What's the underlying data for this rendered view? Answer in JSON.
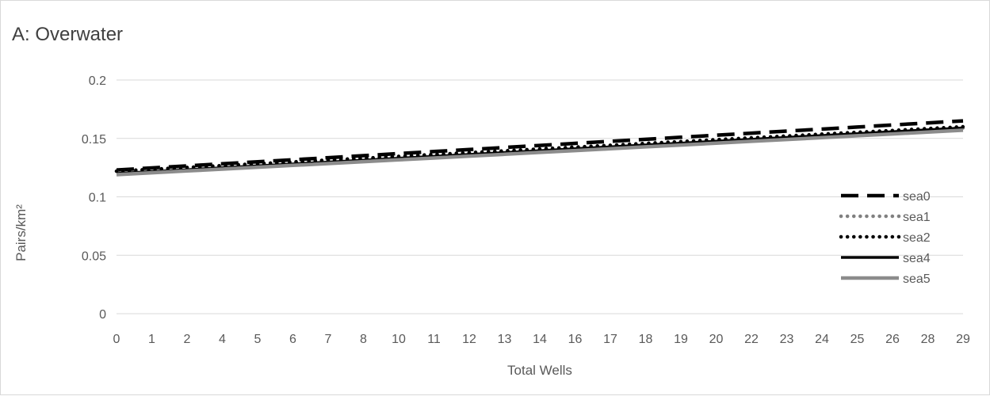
{
  "chart_data": {
    "type": "line",
    "title": "A: Overwater",
    "xlabel": "Total Wells",
    "ylabel": "Pairs/km²",
    "categories": [
      "0",
      "1",
      "2",
      "4",
      "5",
      "6",
      "7",
      "8",
      "10",
      "11",
      "12",
      "13",
      "14",
      "16",
      "17",
      "18",
      "19",
      "20",
      "22",
      "23",
      "24",
      "25",
      "26",
      "28",
      "29"
    ],
    "yticks": [
      "0",
      "0.05",
      "0.1",
      "0.15",
      "0.2"
    ],
    "ylim": [
      0,
      0.2
    ],
    "grid": true,
    "legend_position": "right",
    "series": [
      {
        "name": "sea0",
        "style": "long-dash",
        "color": "#000000",
        "width": 4.5,
        "start": 0.123,
        "end": 0.165
      },
      {
        "name": "sea1",
        "style": "round-dot",
        "color": "#808080",
        "width": 4.5,
        "start": 0.122,
        "end": 0.159
      },
      {
        "name": "sea2",
        "style": "round-dot",
        "color": "#000000",
        "width": 4.5,
        "start": 0.122,
        "end": 0.16
      },
      {
        "name": "sea4",
        "style": "solid",
        "color": "#000000",
        "width": 3.5,
        "start": 0.12,
        "end": 0.159
      },
      {
        "name": "sea5",
        "style": "solid",
        "color": "#8c8c8c",
        "width": 4.5,
        "start": 0.119,
        "end": 0.157
      }
    ]
  }
}
